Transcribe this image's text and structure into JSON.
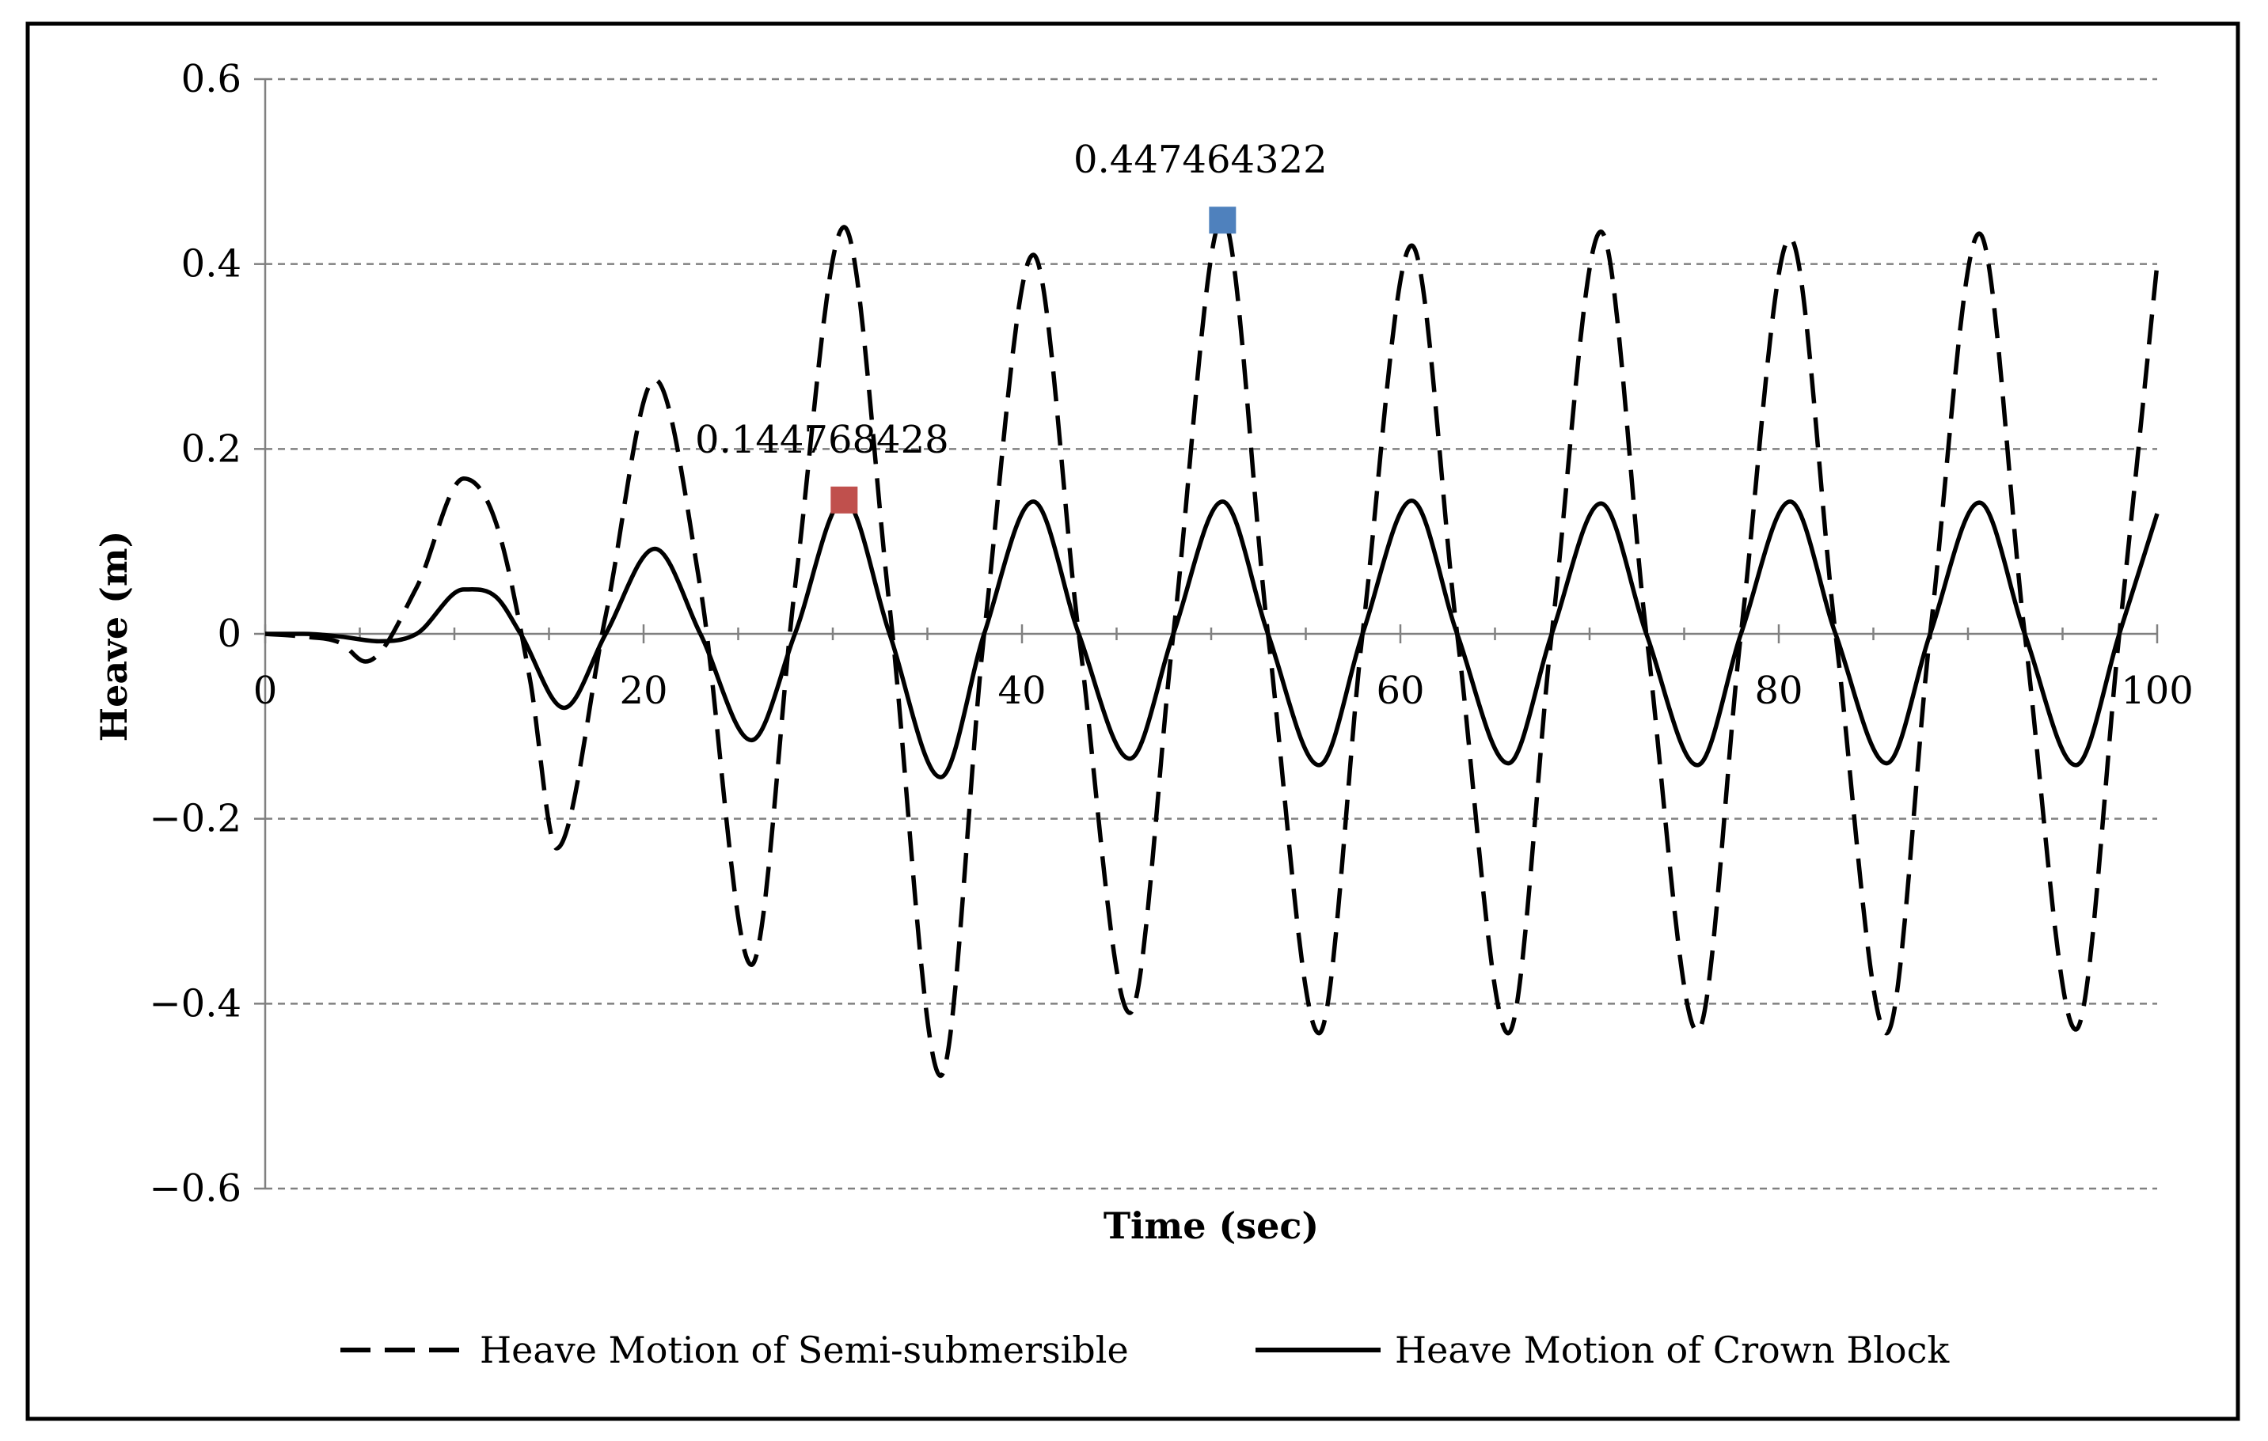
{
  "chart_data": {
    "type": "line",
    "title": "",
    "xlabel": "Time (sec)",
    "ylabel": "Heave (m)",
    "xlim": [
      0,
      100
    ],
    "ylim": [
      -0.6,
      0.6
    ],
    "x_ticks": [
      0,
      20,
      40,
      60,
      80,
      100
    ],
    "y_ticks": [
      0.6,
      0.4,
      0.2,
      0,
      -0.2,
      -0.4,
      -0.6
    ],
    "x_tick_labels": [
      "0",
      "20",
      "40",
      "60",
      "80",
      "100"
    ],
    "y_tick_labels": [
      "0.6",
      "0.4",
      "0.2",
      "0",
      "−0.2",
      "−0.4",
      "−0.6"
    ],
    "grid": "horizontal dashed",
    "legend_position": "bottom",
    "series": [
      {
        "name": "Heave Motion of Semi-submersible",
        "style": "dashed",
        "color": "#000000",
        "x": [
          0,
          2,
          4,
          5.3,
          8,
          10.5,
          12.2,
          14,
          15.4,
          18,
          20.6,
          23,
          25.7,
          28,
          30.6,
          33,
          35.7,
          38,
          40.6,
          43,
          45.7,
          48,
          50.6,
          53,
          55.7,
          58,
          60.6,
          63,
          65.7,
          68,
          70.6,
          73,
          75.7,
          78,
          80.6,
          83,
          85.7,
          88,
          90.6,
          93,
          95.7,
          98,
          100
        ],
        "y": [
          0,
          -0.003,
          -0.01,
          -0.03,
          0.05,
          0.168,
          0.12,
          -0.05,
          -0.232,
          0.02,
          0.275,
          0.05,
          -0.358,
          0.05,
          0.44,
          0.03,
          -0.478,
          0.0,
          0.41,
          0.0,
          -0.41,
          0.0,
          0.45,
          0.0,
          -0.432,
          0.0,
          0.42,
          0.0,
          -0.432,
          0.0,
          0.435,
          0.0,
          -0.43,
          0.0,
          0.428,
          0.0,
          -0.432,
          0.0,
          0.433,
          0.0,
          -0.428,
          0.0,
          0.4
        ]
      },
      {
        "name": "Heave Motion of Crown Block",
        "style": "solid",
        "color": "#000000",
        "x": [
          0,
          2,
          4,
          6,
          8,
          10.5,
          12.2,
          13.5,
          15.8,
          18,
          20.6,
          23,
          25.7,
          28,
          30.6,
          33,
          35.7,
          38,
          40.6,
          43,
          45.7,
          48,
          50.6,
          53,
          55.7,
          58,
          60.6,
          63,
          65.7,
          68,
          70.6,
          73,
          75.7,
          78,
          80.6,
          83,
          85.7,
          88,
          90.6,
          93,
          95.7,
          98,
          100
        ],
        "y": [
          0,
          0,
          -0.003,
          -0.008,
          0.0,
          0.048,
          0.04,
          0.0,
          -0.08,
          0.0,
          0.092,
          0.0,
          -0.115,
          0.0,
          0.145,
          0.0,
          -0.155,
          0.0,
          0.143,
          0.0,
          -0.135,
          0.0,
          0.143,
          0.0,
          -0.142,
          0.0,
          0.144,
          0.0,
          -0.14,
          0.0,
          0.141,
          0.0,
          -0.142,
          0.0,
          0.143,
          0.0,
          -0.14,
          0.0,
          0.142,
          0.0,
          -0.142,
          0.0,
          0.13
        ]
      }
    ],
    "markers": [
      {
        "x": 30.6,
        "y": 0.144768428,
        "label": "0.144768428",
        "color": "#c0504d"
      },
      {
        "x": 50.6,
        "y": 0.447464322,
        "label": "0.447464322",
        "color": "#4f81bd"
      }
    ]
  }
}
